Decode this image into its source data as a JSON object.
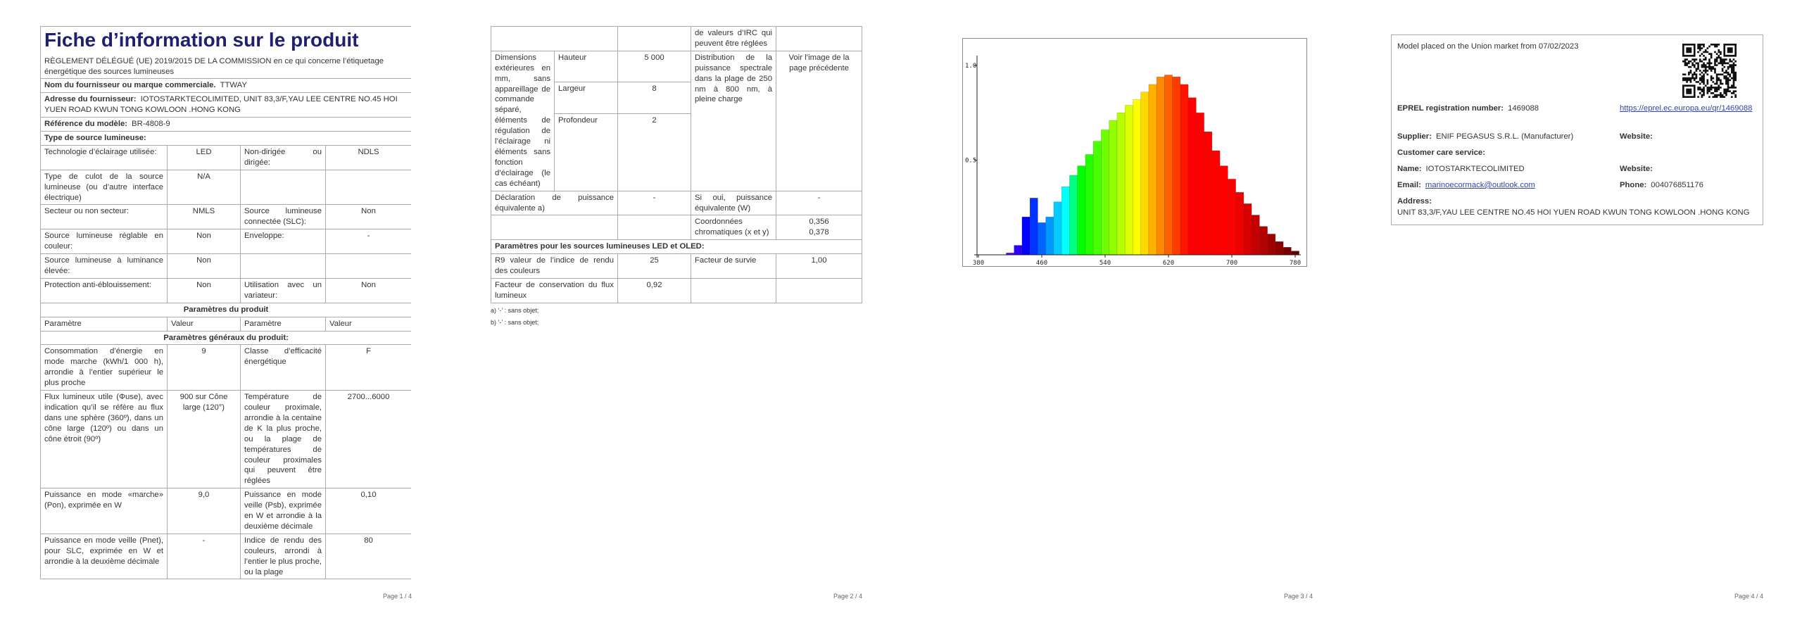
{
  "page1": {
    "title": "Fiche d’information sur le produit",
    "regulation": "RÈGLEMENT DÉLÉGUÉ (UE) 2019/2015 DE LA COMMISSION en ce qui concerne l’étiquetage énergétique des sources lumineuses",
    "supplier": {
      "label": "Nom du fournisseur ou marque commerciale.",
      "value": "TTWAY"
    },
    "address": {
      "label": "Adresse du fournisseur:",
      "value": "IOTOSTARKTECOLIMITED, UNIT 83,3/F,YAU LEE CENTRE NO.45 HOI YUEN ROAD KWUN TONG KOWLOON .HONG KONG"
    },
    "model": {
      "label": "Référence du modèle:",
      "value": "BR-4808-9"
    },
    "source_type": "Type de source lumineuse:",
    "source_rows": [
      [
        "Technologie d’éclairage utilisée:",
        "LED",
        "Non-dirigée ou dirigée:",
        "NDLS"
      ],
      [
        "Type de culot de la source lumineuse (ou d’autre interface électrique)",
        "N/A",
        null,
        null
      ],
      [
        "Secteur ou non secteur:",
        "NMLS",
        "Source lumineuse connectée (SLC):",
        "Non"
      ],
      [
        "Source lumineuse réglable en couleur:",
        "Non",
        "Enveloppe:",
        "-"
      ],
      [
        "Source lumineuse à luminance élevée:",
        "Non",
        null,
        null
      ],
      [
        "Protection anti-éblouissement:",
        "Non",
        "Utilisation avec un variateur:",
        "Non"
      ]
    ],
    "params_title": "Paramètres du produit",
    "params_header": [
      "Paramètre",
      "Valeur",
      "Paramètre",
      "Valeur"
    ],
    "general_title": "Paramètres généraux du produit:",
    "general_rows": [
      [
        "Consommation d’énergie en mode marche (kWh/1 000 h), arrondie à l’entier supérieur le plus proche",
        "9",
        "Classe d’efficacité énergétique",
        "F"
      ],
      [
        "Flux lumineux utile (Φuse), avec indication qu’il se réfère au flux dans une sphère (360º), dans un cône large (120º) ou dans un cône étroit (90º)",
        "900 sur Cône large (120°)",
        "Température de couleur proximale, arrondie à la centaine de K la plus proche, ou la plage de températures de couleur proximales qui peuvent être réglées",
        "2700...6000"
      ],
      [
        "Puissance en mode «marche» (Pon), exprimée en W",
        "9,0",
        "Puissance en mode veille (Psb), exprimée en W et arrondie à la deuxième décimale",
        "0,10"
      ],
      [
        "Puissance en mode veille (Pnet), pour SLC, exprimée en W et arrondie à la deuxième décimale",
        "-",
        "Indice de rendu des couleurs, arrondi à l’entier le plus proche, ou la plage",
        "80"
      ]
    ],
    "page_number": "Page 1 / 4"
  },
  "page2": {
    "continuation": "de valeurs d’IRC qui peuvent être réglées",
    "dimensions": {
      "label": "Dimensions extérieures en mm, sans appareillage de commande séparé, éléments de régulation de l’éclairage ni éléments sans fonction d’éclairage (le cas échéant)",
      "items": [
        {
          "name": "Hauteur",
          "value": "5 000"
        },
        {
          "name": "Largeur",
          "value": "8"
        },
        {
          "name": "Profondeur",
          "value": "2"
        }
      ],
      "param": "Distribution de la puissance spectrale dans la plage de 250 nm à 800 nm, à pleine charge",
      "param_value": "Voir l’image de la page précédente"
    },
    "rows": [
      [
        "Déclaration de puissance équivalente a)",
        "-",
        "Si oui, puissance équivalente (W)",
        "-"
      ],
      [
        null,
        null,
        "Coordonnées chromatiques (x et y)",
        "0,356\n0,378"
      ]
    ],
    "led_title": "Paramètres pour les sources lumineuses LED et OLED:",
    "led_rows": [
      [
        "R9 valeur de l’indice de rendu des couleurs",
        "25",
        "Facteur de survie",
        "1,00"
      ],
      [
        "Facteur de conservation du flux lumineux",
        "0,92",
        null,
        null
      ]
    ],
    "notes": [
      "a) ‘-’ : sans objet;",
      "b) ‘-’ : sans objet;"
    ],
    "page_number": "Page 2 / 4"
  },
  "page3": {
    "spectrum": {
      "type": "bar",
      "x": [
        380,
        390,
        400,
        410,
        420,
        430,
        440,
        450,
        460,
        470,
        480,
        490,
        500,
        510,
        520,
        530,
        540,
        550,
        560,
        570,
        580,
        590,
        600,
        610,
        620,
        630,
        640,
        650,
        660,
        670,
        680,
        690,
        700,
        710,
        720,
        730,
        740,
        750,
        760,
        770,
        780
      ],
      "values": [
        0,
        0,
        0,
        0,
        0.01,
        0.05,
        0.2,
        0.3,
        0.17,
        0.2,
        0.28,
        0.36,
        0.42,
        0.47,
        0.53,
        0.6,
        0.66,
        0.71,
        0.75,
        0.79,
        0.82,
        0.86,
        0.9,
        0.94,
        0.95,
        0.94,
        0.9,
        0.83,
        0.75,
        0.65,
        0.55,
        0.47,
        0.4,
        0.33,
        0.27,
        0.21,
        0.15,
        0.11,
        0.07,
        0.04,
        0.02
      ],
      "xlim": [
        380,
        780
      ],
      "ylim": [
        0,
        1
      ],
      "xticks": [
        380,
        460,
        540,
        620,
        700,
        780
      ],
      "yticks": [
        0.5,
        {
          "value": 1,
          "label": "1.0"
        }
      ]
    },
    "page_number": "Page 3 / 4"
  },
  "page4": {
    "placed": "Model placed on the Union market from 07/02/2023",
    "eprel": {
      "label": "EPREL registration number:",
      "value": "1469088"
    },
    "link": "https://eprel.ec.europa.eu/qr/1469088",
    "supplier": {
      "label": "Supplier:",
      "value": "ENIF PEGASUS S.R.L. (Manufacturer)"
    },
    "supplier_website": "Website:",
    "customer_care": "Customer care service:",
    "name": {
      "label": "Name:",
      "value": "IOTOSTARKTECOLIMITED"
    },
    "care_website": "Website:",
    "email": {
      "label": "Email:",
      "value": "marinoecormack@outlook.com"
    },
    "phone": {
      "label": "Phone:",
      "value": "004076851176"
    },
    "address": {
      "label": "Address:",
      "value": "UNIT 83,3/F,YAU LEE CENTRE NO.45 HOI YUEN ROAD KWUN TONG KOWLOON .HONG KONG"
    },
    "page_number": "Page 4 / 4"
  }
}
